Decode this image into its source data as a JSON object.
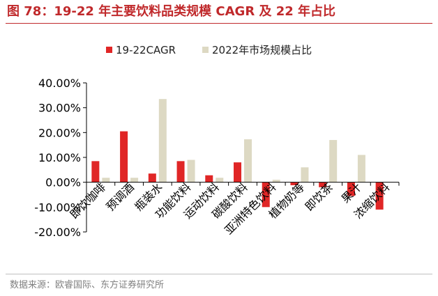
{
  "figure": {
    "title": "图 78：19-22 年主要饮料品类规模 CAGR 及 22 年占比",
    "source": "数据来源：欧睿国际、东方证券研究所"
  },
  "chart_data": {
    "type": "bar",
    "categories": [
      "即饮咖啡",
      "预调酒",
      "瓶装水",
      "功能饮料",
      "运动饮料",
      "碳酸饮料",
      "亚洲特色饮料",
      "植物奶等",
      "即饮茶",
      "果汁",
      "浓缩饮料"
    ],
    "series": [
      {
        "name": "19-22CAGR",
        "color": "#e02626",
        "values": [
          8.5,
          20.5,
          3.5,
          8.5,
          2.8,
          8.0,
          -10.0,
          -1.2,
          -2.0,
          -5.5,
          -11.0
        ]
      },
      {
        "name": "2022年市场规模占比",
        "color": "#ddd9c3",
        "values": [
          1.8,
          1.8,
          33.5,
          9.0,
          1.8,
          17.3,
          1.0,
          6.0,
          17.0,
          11.0,
          0.0
        ]
      }
    ],
    "ylim": [
      -20,
      40
    ],
    "yticks": [
      "40.00%",
      "30.00%",
      "20.00%",
      "10.00%",
      "0.00%",
      "-10.00%",
      "-20.00%"
    ],
    "ytick_values": [
      40,
      30,
      20,
      10,
      0,
      -10,
      -20
    ],
    "legend": "top-center",
    "grid": false
  }
}
